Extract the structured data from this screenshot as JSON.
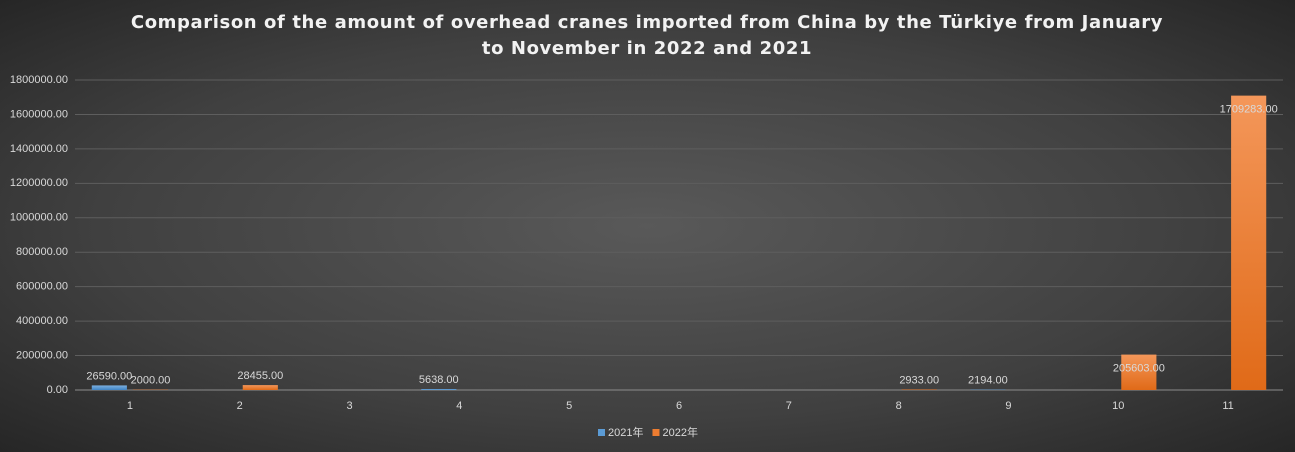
{
  "chart_data": {
    "type": "bar",
    "title": "Comparison of the amount of overhead cranes imported from China by the Türkiye from January to November in 2022 and 2021",
    "categories": [
      "1",
      "2",
      "3",
      "4",
      "5",
      "6",
      "7",
      "8",
      "9",
      "10",
      "11"
    ],
    "series": [
      {
        "name": "2021年",
        "color": "#5b9bd5",
        "values": [
          26590,
          null,
          null,
          5638,
          null,
          null,
          null,
          null,
          2194,
          null,
          null
        ],
        "value_labels": [
          "26590.00",
          null,
          null,
          "5638.00",
          null,
          null,
          null,
          null,
          "2194.00",
          null,
          null
        ]
      },
      {
        "name": "2022年",
        "color": "#ed7d31",
        "values": [
          2000,
          28455,
          null,
          null,
          null,
          null,
          null,
          2933,
          null,
          205603,
          1709283
        ],
        "value_labels": [
          "2000.00",
          "28455.00",
          null,
          null,
          null,
          null,
          null,
          "2933.00",
          null,
          "205603.00",
          "1709283.00"
        ]
      }
    ],
    "ylim": [
      0,
      1800000
    ],
    "yticks": [
      {
        "value": 0,
        "label": "0.00"
      },
      {
        "value": 200000,
        "label": "200000.00"
      },
      {
        "value": 400000,
        "label": "400000.00"
      },
      {
        "value": 600000,
        "label": "600000.00"
      },
      {
        "value": 800000,
        "label": "800000.00"
      },
      {
        "value": 1000000,
        "label": "1000000.00"
      },
      {
        "value": 1200000,
        "label": "1200000.00"
      },
      {
        "value": 1400000,
        "label": "1400000.00"
      },
      {
        "value": 1600000,
        "label": "1600000.00"
      },
      {
        "value": 1800000,
        "label": "1800000.00"
      }
    ],
    "grid": true,
    "legend": "bottom"
  }
}
